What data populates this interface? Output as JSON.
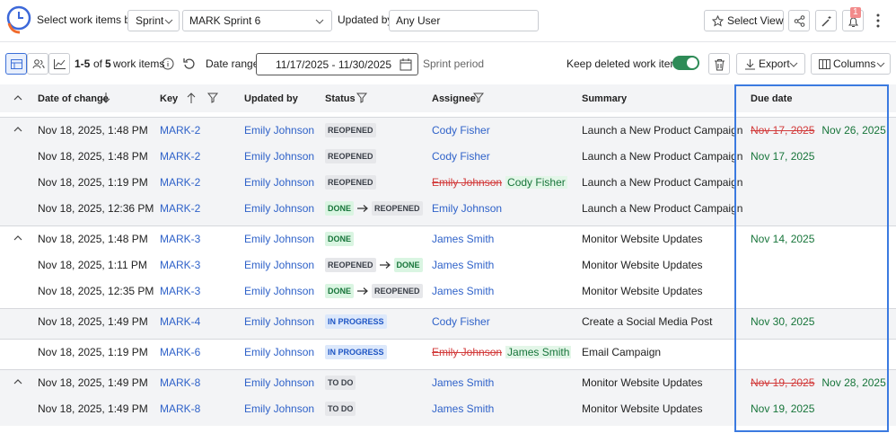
{
  "toolbar": {
    "select_by_label": "Select work items by:",
    "select_by": "Sprint",
    "sprint": "MARK Sprint 6",
    "updated_by_label": "Updated by:",
    "updated_by": "Any User",
    "select_view": "Select View",
    "notifications": "1"
  },
  "subbar": {
    "count_range": "1-5",
    "count_of": "of",
    "count_total": "5",
    "count_suffix": "work items",
    "date_range_label": "Date range:",
    "date_range": "11/17/2025 - 11/30/2025",
    "date_range_hint": "Sprint period",
    "keep_deleted_label": "Keep deleted work items",
    "keep_deleted": true,
    "export": "Export",
    "columns": "Columns"
  },
  "table": {
    "headers": [
      "Date of change",
      "Key",
      "Updated by",
      "Status",
      "Assignee",
      "Summary",
      "Due date"
    ],
    "status_colors": {
      "REOPENED": {
        "bg": "#e6e7ea",
        "fg": "#3a3f48"
      },
      "DONE": {
        "bg": "#daf5e2",
        "fg": "#17753a"
      },
      "IN PROGRESS": {
        "bg": "#dce8fb",
        "fg": "#1f56c4"
      },
      "TO DO": {
        "bg": "#e6e7ea",
        "fg": "#3a3f48"
      }
    },
    "groups": [
      {
        "rows": [
          {
            "date": "Nov 18, 2025, 1:48 PM",
            "key": "MARK-2",
            "updated_by": "Emily Johnson",
            "status": [
              "REOPENED"
            ],
            "assignee": "Cody Fisher",
            "summary": "Launch a New Product Campaign",
            "due_old": "Nov 17, 2025",
            "due": "Nov 26, 2025"
          },
          {
            "date": "Nov 18, 2025, 1:48 PM",
            "key": "MARK-2",
            "updated_by": "Emily Johnson",
            "status": [
              "REOPENED"
            ],
            "assignee": "Cody Fisher",
            "summary": "Launch a New Product Campaign",
            "due": "Nov 17, 2025"
          },
          {
            "date": "Nov 18, 2025, 1:19 PM",
            "key": "MARK-2",
            "updated_by": "Emily Johnson",
            "status": [
              "REOPENED"
            ],
            "assignee_old": "Emily Johnson",
            "assignee": "Cody Fisher",
            "summary": "Launch a New Product Campaign"
          },
          {
            "date": "Nov 18, 2025, 12:36 PM",
            "key": "MARK-2",
            "updated_by": "Emily Johnson",
            "status": [
              "DONE",
              "REOPENED"
            ],
            "assignee": "Emily Johnson",
            "summary": "Launch a New Product Campaign"
          }
        ]
      },
      {
        "rows": [
          {
            "date": "Nov 18, 2025, 1:48 PM",
            "key": "MARK-3",
            "updated_by": "Emily Johnson",
            "status": [
              "DONE"
            ],
            "assignee": "James Smith",
            "summary": "Monitor Website Updates",
            "due": "Nov 14, 2025"
          },
          {
            "date": "Nov 18, 2025, 1:11 PM",
            "key": "MARK-3",
            "updated_by": "Emily Johnson",
            "status": [
              "REOPENED",
              "DONE"
            ],
            "assignee": "James Smith",
            "summary": "Monitor Website Updates"
          },
          {
            "date": "Nov 18, 2025, 12:35 PM",
            "key": "MARK-3",
            "updated_by": "Emily Johnson",
            "status": [
              "DONE",
              "REOPENED"
            ],
            "assignee": "James Smith",
            "summary": "Monitor Website Updates"
          }
        ]
      },
      {
        "rows": [
          {
            "date": "Nov 18, 2025, 1:49 PM",
            "key": "MARK-4",
            "updated_by": "Emily Johnson",
            "status": [
              "IN PROGRESS"
            ],
            "assignee": "Cody Fisher",
            "summary": "Create a Social Media Post",
            "due": "Nov 30, 2025"
          }
        ]
      },
      {
        "rows": [
          {
            "date": "Nov 18, 2025, 1:19 PM",
            "key": "MARK-6",
            "updated_by": "Emily Johnson",
            "status": [
              "IN PROGRESS"
            ],
            "assignee_old": "Emily Johnson",
            "assignee": "James Smith",
            "summary": "Email Campaign"
          }
        ]
      },
      {
        "rows": [
          {
            "date": "Nov 18, 2025, 1:49 PM",
            "key": "MARK-8",
            "updated_by": "Emily Johnson",
            "status": [
              "TO DO"
            ],
            "assignee": "James Smith",
            "summary": "Monitor Website Updates",
            "due_old": "Nov 19, 2025",
            "due": "Nov 28, 2025"
          },
          {
            "date": "Nov 18, 2025, 1:49 PM",
            "key": "MARK-8",
            "updated_by": "Emily Johnson",
            "status": [
              "TO DO"
            ],
            "assignee": "James Smith",
            "summary": "Monitor Website Updates",
            "due": "Nov 19, 2025"
          }
        ]
      }
    ]
  }
}
